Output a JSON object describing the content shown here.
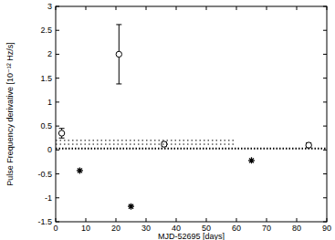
{
  "chart_data": {
    "type": "scatter",
    "x_label": "MJD-52695 [days]",
    "y_label": "Pulse Frequency derivative [10⁻¹² Hz/s]",
    "xlim": [
      0,
      90
    ],
    "xticks": [
      0,
      10,
      20,
      30,
      40,
      50,
      60,
      70,
      80,
      90
    ],
    "ylim": [
      -1.5,
      3
    ],
    "yticks": [
      -1.5,
      -1,
      -0.5,
      0,
      0.5,
      1,
      1.5,
      2,
      2.5,
      3
    ],
    "grid": false,
    "series": [
      {
        "type": "scatter",
        "marker": "circle",
        "color": "#000000",
        "x": [
          2,
          21,
          36,
          84
        ],
        "values": [
          0.35,
          2.0,
          0.12,
          0.1
        ],
        "errors": [
          0.1,
          0.62,
          0.05,
          0.05
        ]
      },
      {
        "type": "scatter",
        "marker": "star",
        "color": "#000000",
        "x": [
          8,
          25,
          65
        ],
        "values": [
          -0.43,
          -1.18,
          -0.22
        ]
      },
      {
        "type": "line",
        "line_style": "dotted",
        "color": "#000000",
        "x": [
          0,
          60
        ],
        "values": [
          0.2,
          0.2
        ]
      },
      {
        "type": "line",
        "line_style": "dotted",
        "color": "#000000",
        "x": [
          0,
          60
        ],
        "values": [
          0.12,
          0.12
        ]
      },
      {
        "type": "line",
        "line_style": "densely-dotted",
        "color": "#000000",
        "x": [
          0,
          90
        ],
        "values": [
          0.03,
          0.03
        ]
      }
    ]
  }
}
